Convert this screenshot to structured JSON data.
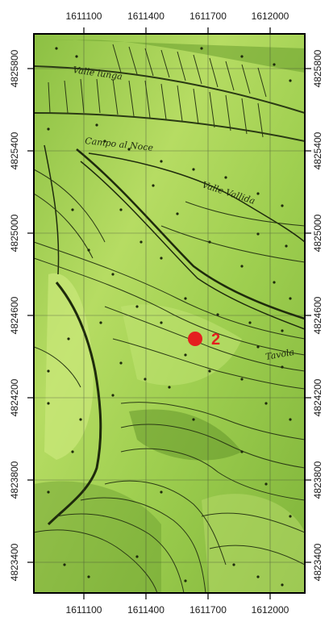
{
  "map": {
    "x_ticks": [
      "1611100",
      "1611400",
      "1611700",
      "1612000"
    ],
    "y_ticks": [
      "4825800",
      "4825400",
      "4825000",
      "4824600",
      "4824200",
      "4823800",
      "4823400"
    ],
    "place_labels": [
      "Valle lunga",
      "Campo al Noce",
      "Valle Vallida",
      "Tavola"
    ],
    "point": {
      "label": "2",
      "color": "#e41f1f"
    },
    "colors": {
      "background": "#9ccc4c",
      "contour": "#2b3a14",
      "frame": "#000000"
    }
  }
}
